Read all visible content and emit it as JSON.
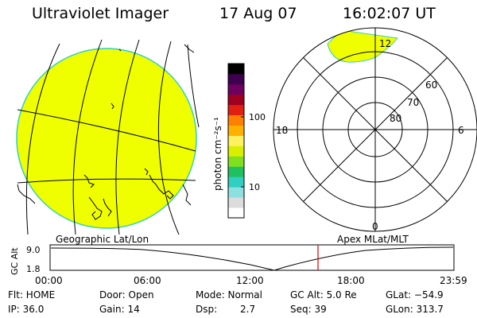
{
  "header": {
    "instrument": "Ultraviolet Imager",
    "date": "17 Aug 07",
    "time": "16:02:07 UT"
  },
  "colorbar": {
    "label": "photon cm⁻²s⁻¹",
    "tick_100": "100",
    "tick_10": "10",
    "colors": [
      "#ffffff",
      "#dcdcdc",
      "#8ee0e0",
      "#2fd0c0",
      "#20c060",
      "#80e020",
      "#d8f000",
      "#fff060",
      "#ffb000",
      "#ff8000",
      "#e02010",
      "#a00020",
      "#700060",
      "#400050",
      "#000000"
    ]
  },
  "polar_plot": {
    "lat_labels": [
      "60",
      "70",
      "80"
    ],
    "mlt_labels": {
      "top": "12",
      "left": "18",
      "right": "6",
      "bottom": "0"
    }
  },
  "panel_labels": {
    "left": "Geographic Lat/Lon",
    "right": "Apex MLat/MLT"
  },
  "altitude_plot": {
    "ylabel": "GC Alt",
    "y_ticks": [
      "9.0",
      "1.8"
    ],
    "x_ticks": [
      "00:00",
      "06:00",
      "12:00",
      "18:00",
      "23:59"
    ],
    "marker_time": "16:02"
  },
  "status": {
    "flt": "Flt: HOME",
    "ip": "IP: 36.0",
    "door": "Door: Open",
    "gain": "Gain: 14",
    "mode": "Mode: Normal",
    "dsp_label": "Dsp:",
    "dsp_value": "2.7",
    "gc_alt": "GC Alt: 5.0 Re",
    "seq": "Seq: 39",
    "glat": "GLat: −54.9",
    "glon": "GLon: 313.7"
  },
  "colors": {
    "emission_fill": "#f0ff00",
    "limb_outline": "#2fd0c0",
    "marker_line": "#e00000"
  }
}
